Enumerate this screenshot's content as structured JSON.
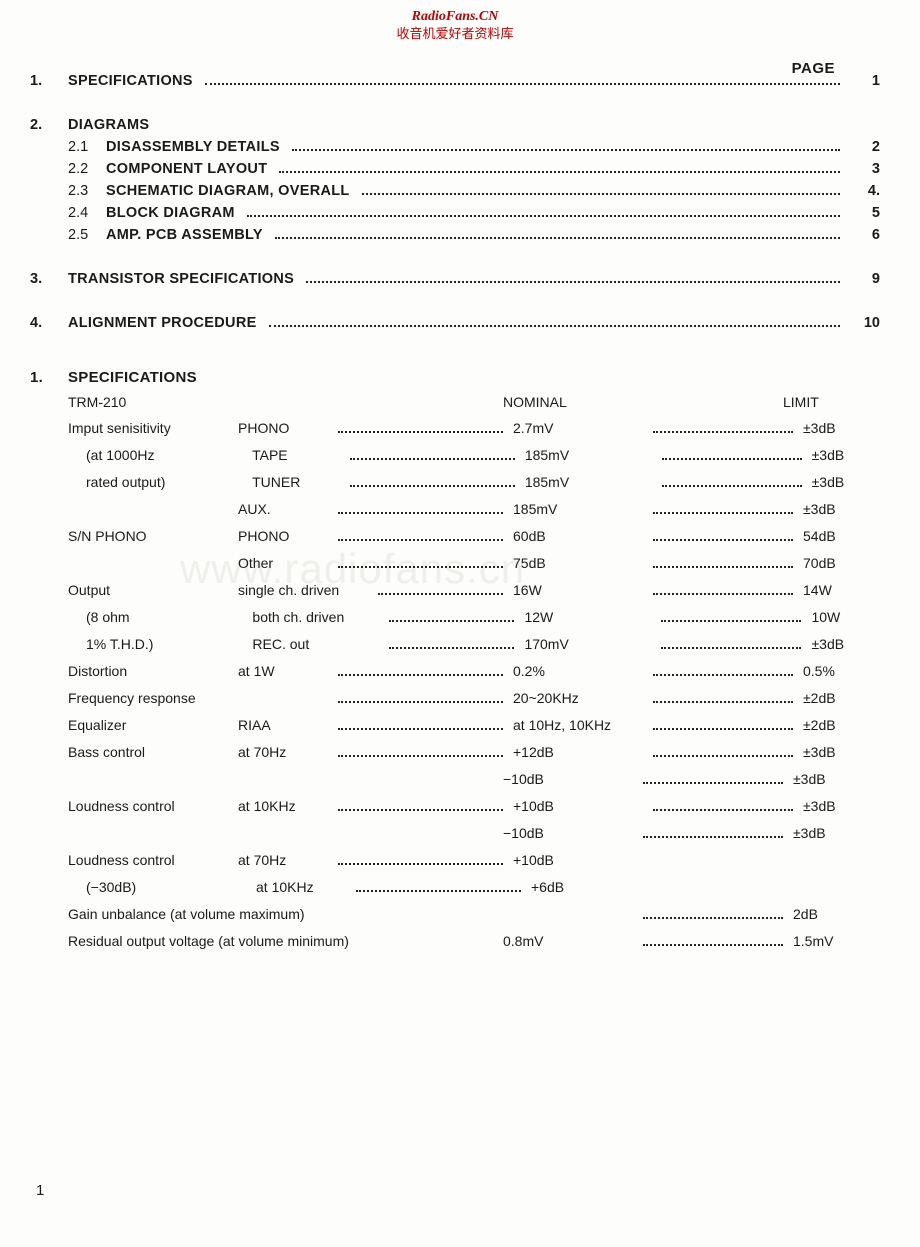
{
  "watermark": {
    "line1": "RadioFans.CN",
    "line2": "收音机爱好者资料库",
    "center": "www.radiofans.cn",
    "color": "#c00000",
    "center_color": "#efefec"
  },
  "page_label": "PAGE",
  "toc": [
    {
      "type": "major",
      "num": "1.",
      "title": "SPECIFICATIONS",
      "page": "1"
    },
    {
      "type": "major-nopage",
      "num": "2.",
      "title": "DIAGRAMS"
    },
    {
      "type": "minor",
      "num": "2.1",
      "title": "DISASSEMBLY DETAILS",
      "page": "2"
    },
    {
      "type": "minor",
      "num": "2.2",
      "title": "COMPONENT LAYOUT",
      "page": "3"
    },
    {
      "type": "minor",
      "num": "2.3",
      "title": "SCHEMATIC DIAGRAM, OVERALL",
      "page": "4."
    },
    {
      "type": "minor",
      "num": "2.4",
      "title": "BLOCK DIAGRAM",
      "page": "5"
    },
    {
      "type": "minor",
      "num": "2.5",
      "title": "AMP. PCB ASSEMBLY",
      "page": "6"
    },
    {
      "type": "major",
      "num": "3.",
      "title": "TRANSISTOR SPECIFICATIONS",
      "page": "9"
    },
    {
      "type": "major",
      "num": "4.",
      "title": "ALIGNMENT PROCEDURE",
      "page": "10"
    }
  ],
  "section": {
    "num": "1.",
    "title": "SPECIFICATIONS"
  },
  "spec_header": {
    "model": "TRM-210",
    "nominal": "NOMINAL",
    "limit": "LIMIT"
  },
  "specs": [
    {
      "a": "Imput senisitivity",
      "b": "PHONO",
      "c": "2.7mV",
      "d": "±3dB"
    },
    {
      "a": "(at 1000Hz",
      "a_indent": true,
      "b": "TAPE",
      "c": "185mV",
      "d": "±3dB"
    },
    {
      "a": "rated output)",
      "a_indent": true,
      "b": "TUNER",
      "c": "185mV",
      "d": "±3dB"
    },
    {
      "a": "",
      "b": "AUX.",
      "c": "185mV",
      "d": "±3dB"
    },
    {
      "a": "S/N  PHONO",
      "b": "PHONO",
      "c": "60dB",
      "d": "54dB"
    },
    {
      "a": "",
      "b": "Other",
      "c": "75dB",
      "d": "70dB"
    },
    {
      "a": "Output",
      "b": "single ch. driven",
      "b_wide": true,
      "c": "16W",
      "d": "14W"
    },
    {
      "a": "(8 ohm",
      "a_indent": true,
      "b": "both ch. driven",
      "b_wide": true,
      "c": "12W",
      "d": "10W"
    },
    {
      "a": "1% T.H.D.)",
      "a_indent": true,
      "b": "REC. out",
      "b_wide": true,
      "c": "170mV",
      "d": "±3dB"
    },
    {
      "a": "Distortion",
      "b": "at 1W",
      "c": "0.2%",
      "d": "0.5%"
    },
    {
      "a": "Frequency response",
      "b": "",
      "no_b": true,
      "c": "20~20KHz",
      "d": "±2dB"
    },
    {
      "a": "Equalizer",
      "b": "RIAA",
      "c": "at 10Hz, 10KHz",
      "d": "±2dB"
    },
    {
      "a": "Bass control",
      "b": "at 70Hz",
      "c": "+12dB",
      "d": "±3dB"
    },
    {
      "a": "",
      "b": "",
      "no_b": true,
      "no_dots1": true,
      "c": "−10dB",
      "d": "±3dB"
    },
    {
      "a": "Loudness control",
      "b": "at 10KHz",
      "c": "+10dB",
      "d": "±3dB"
    },
    {
      "a": "",
      "b": "",
      "no_b": true,
      "no_dots1": true,
      "c": "−10dB",
      "d": "±3dB"
    },
    {
      "a": "Loudness control",
      "b": "at 70Hz",
      "c": "+10dB",
      "no_d": true
    },
    {
      "a": "(−30dB)",
      "a_indent": true,
      "b": "at 10KHz",
      "c": "+6dB",
      "no_d": true
    },
    {
      "a_full": "Gain unbalance (at volume maximum)",
      "no_dots1": true,
      "c": "",
      "d": "2dB"
    },
    {
      "a_full": "Residual output voltage (at volume minimum)",
      "c": "0.8mV",
      "d": "1.5mV"
    }
  ],
  "bottom_page": "1",
  "style": {
    "bg": "#fdfdfb",
    "text": "#1a1a1a",
    "font_size_body": 14,
    "font_size_toc": 14.5,
    "font_size_head": 15,
    "watermark_font_size": 42
  }
}
